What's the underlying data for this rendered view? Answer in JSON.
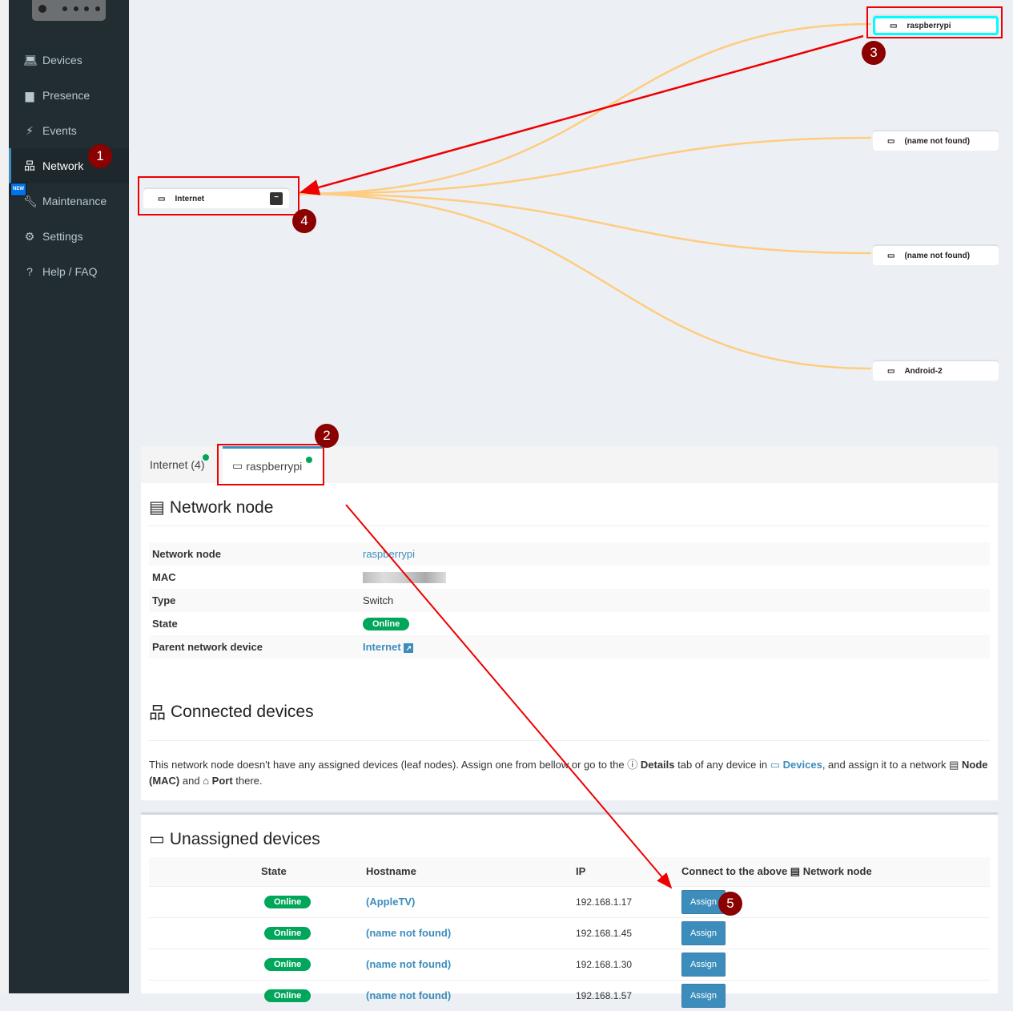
{
  "sidebar": {
    "items": [
      {
        "label": "Devices",
        "icon": "laptop-icon"
      },
      {
        "label": "Presence",
        "icon": "calendar-icon"
      },
      {
        "label": "Events",
        "icon": "bolt-icon"
      },
      {
        "label": "Network",
        "icon": "sitemap-icon",
        "active": true
      },
      {
        "label": "Maintenance",
        "icon": "wrench-icon",
        "badge": "NEW"
      },
      {
        "label": "Settings",
        "icon": "gear-icon"
      },
      {
        "label": "Help / FAQ",
        "icon": "question-icon"
      }
    ]
  },
  "graph": {
    "root": "Internet",
    "nodes": [
      "raspberrypi",
      "(name not found)",
      "(name not found)",
      "Android-2"
    ],
    "link_color": "#ffcc80"
  },
  "annotations": [
    "1",
    "2",
    "3",
    "4",
    "5"
  ],
  "tabs": [
    {
      "label": "Internet (4)"
    },
    {
      "label": "raspberrypi",
      "active": true
    }
  ],
  "node_panel": {
    "title": "Network node",
    "rows": [
      {
        "key": "Network node",
        "value": "raspberrypi"
      },
      {
        "key": "MAC",
        "value": ""
      },
      {
        "key": "Type",
        "value": "Switch"
      },
      {
        "key": "State",
        "value": "Online"
      },
      {
        "key": "Parent network device",
        "value": "Internet"
      }
    ]
  },
  "connected": {
    "title": "Connected devices",
    "text1": "This network node doesn't have any assigned devices (leaf nodes). Assign one from bellow or go to the ",
    "details": "Details",
    "text2": " tab of any device in ",
    "devices_link": "Devices",
    "text3": ", and assign it to a network ",
    "node_mac": "Node (MAC)",
    "text4": " and ",
    "port": "Port",
    "text5": " there."
  },
  "unassigned": {
    "title": "Unassigned devices",
    "headers": {
      "state": "State",
      "hostname": "Hostname",
      "ip": "IP",
      "connect_prefix": "Connect to the above ",
      "connect_suffix": "Network node"
    },
    "rows": [
      {
        "state": "Online",
        "hostname": "(AppleTV)",
        "ip": "192.168.1.17",
        "action": "Assign"
      },
      {
        "state": "Online",
        "hostname": "(name not found)",
        "ip": "192.168.1.45",
        "action": "Assign"
      },
      {
        "state": "Online",
        "hostname": "(name not found)",
        "ip": "192.168.1.30",
        "action": "Assign"
      },
      {
        "state": "Online",
        "hostname": "(name not found)",
        "ip": "192.168.1.57",
        "action": "Assign"
      }
    ]
  },
  "colors": {
    "sidebar": "#222d32",
    "accent": "#3c8dbc",
    "online": "#00a65a",
    "annotation": "#8b0000",
    "highlight": "#ee0000"
  }
}
